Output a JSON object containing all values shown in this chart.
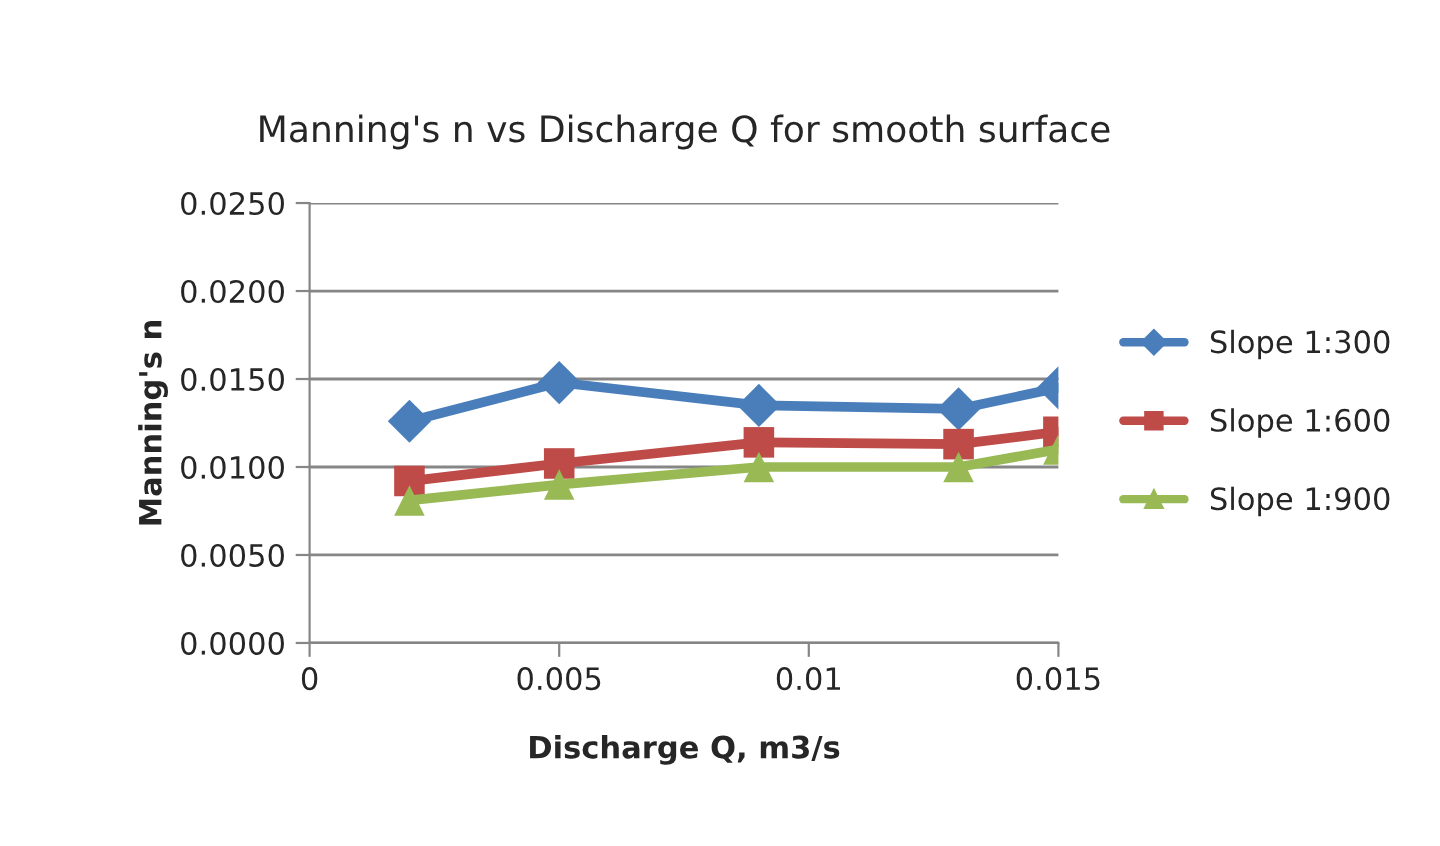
{
  "chart_data": {
    "type": "line",
    "title": "Manning's n vs Discharge Q for smooth surface",
    "xlabel": "Discharge Q, m3/s",
    "ylabel": "Manning's n",
    "x": [
      0.002,
      0.005,
      0.009,
      0.013,
      0.015
    ],
    "series": [
      {
        "name": "Slope 1:300",
        "color": "#4a7ebb",
        "marker": "diamond",
        "values": [
          0.0126,
          0.0148,
          0.0135,
          0.0133,
          0.0145
        ]
      },
      {
        "name": "Slope 1:600",
        "color": "#be4b48",
        "marker": "square",
        "values": [
          0.0092,
          0.0102,
          0.0114,
          0.0113,
          0.012
        ]
      },
      {
        "name": "Slope 1:900",
        "color": "#98b954",
        "marker": "triangle",
        "values": [
          0.0081,
          0.009,
          0.01,
          0.01,
          0.011
        ]
      }
    ],
    "xlim": [
      0,
      0.015
    ],
    "xticks": [
      0,
      0.005,
      0.01,
      0.015
    ],
    "ylim": [
      0,
      0.025
    ],
    "yticks": [
      {
        "value": 0,
        "label": "0.0000"
      },
      {
        "value": 0.005,
        "label": "0.0050"
      },
      {
        "value": 0.01,
        "label": "0.0100"
      },
      {
        "value": 0.015,
        "label": "0.0150"
      },
      {
        "value": 0.02,
        "label": "0.0200"
      },
      {
        "value": 0.025,
        "label": "0.0250"
      }
    ],
    "grid": "y",
    "legend": "right"
  }
}
